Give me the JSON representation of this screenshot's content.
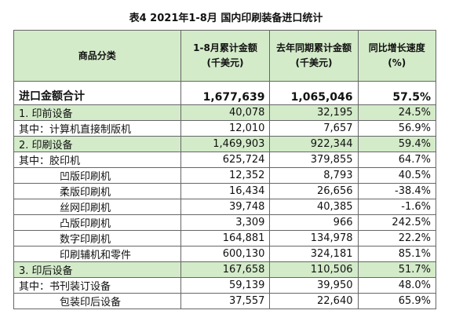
{
  "title": "表4 2021年1-8月 国内印刷装备进口统计",
  "table": {
    "header": [
      [
        "商品分类"
      ],
      [
        "1-8月累计金额",
        "(千美元)"
      ],
      [
        "去年同期累计金额",
        "(千美元)"
      ],
      [
        "同比增长速度",
        "(%)"
      ]
    ],
    "rows": [
      [
        "进口金额合计",
        "1,677,639",
        "1,065,046",
        "57.5%"
      ],
      [
        "1. 印前设备",
        "40,078",
        "32,195",
        "24.5%"
      ],
      [
        "其中：计算机直接制版机",
        "12,010",
        "7,657",
        "56.9%"
      ],
      [
        "2. 印刷设备",
        "1,469,903",
        "922,344",
        "59.4%"
      ],
      [
        "其中：胶印机",
        "625,724",
        "379,855",
        "64.7%"
      ],
      [
        "凹版印刷机",
        "12,352",
        "8,793",
        "40.5%"
      ],
      [
        "柔版印刷机",
        "16,434",
        "26,656",
        "-38.4%"
      ],
      [
        "丝网印刷机",
        "39,748",
        "40,385",
        "-1.6%"
      ],
      [
        "凸版印刷机",
        "3,309",
        "966",
        "242.5%"
      ],
      [
        "数字印刷机",
        "164,881",
        "134,978",
        "22.2%"
      ],
      [
        "印刷辅机和零件",
        "600,130",
        "324,181",
        "85.1%"
      ],
      [
        "3. 印后设备",
        "167,658",
        "110,506",
        "51.7%"
      ],
      [
        "其中：书刊装订设备",
        "59,139",
        "39,950",
        "48.0%"
      ],
      [
        "包装印后设备",
        "37,557",
        "22,640",
        "65.9%"
      ]
    ]
  }
}
